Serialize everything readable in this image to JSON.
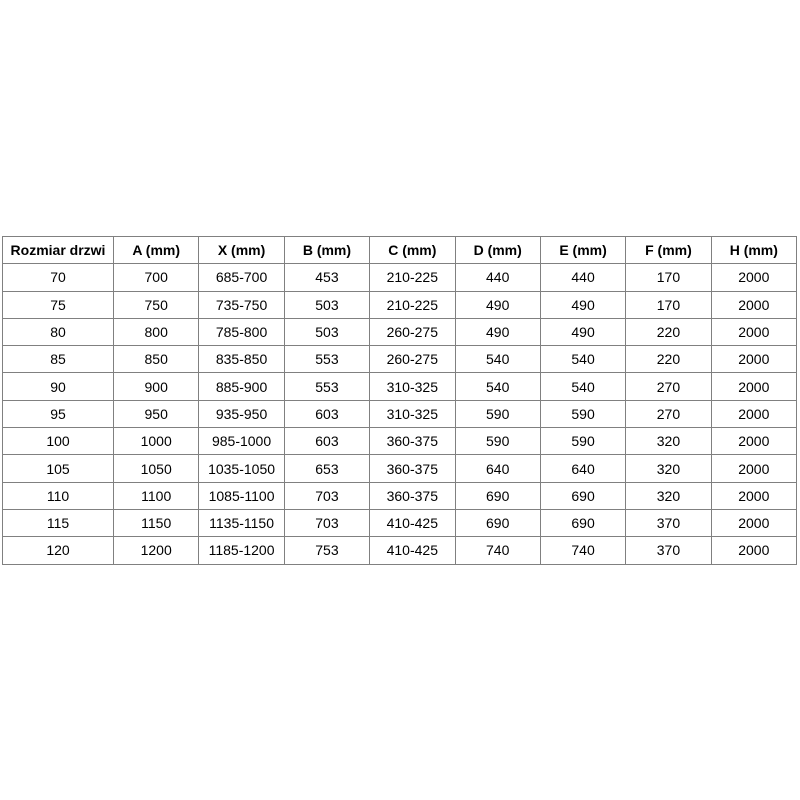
{
  "chart_data": {
    "type": "table",
    "title": "",
    "columns": [
      "Rozmiar drzwi",
      "A (mm)",
      "X (mm)",
      "B (mm)",
      "C (mm)",
      "D (mm)",
      "E (mm)",
      "F (mm)",
      "H (mm)"
    ],
    "rows": [
      [
        "70",
        "700",
        "685-700",
        "453",
        "210-225",
        "440",
        "440",
        "170",
        "2000"
      ],
      [
        "75",
        "750",
        "735-750",
        "503",
        "210-225",
        "490",
        "490",
        "170",
        "2000"
      ],
      [
        "80",
        "800",
        "785-800",
        "503",
        "260-275",
        "490",
        "490",
        "220",
        "2000"
      ],
      [
        "85",
        "850",
        "835-850",
        "553",
        "260-275",
        "540",
        "540",
        "220",
        "2000"
      ],
      [
        "90",
        "900",
        "885-900",
        "553",
        "310-325",
        "540",
        "540",
        "270",
        "2000"
      ],
      [
        "95",
        "950",
        "935-950",
        "603",
        "310-325",
        "590",
        "590",
        "270",
        "2000"
      ],
      [
        "100",
        "1000",
        "985-1000",
        "603",
        "360-375",
        "590",
        "590",
        "320",
        "2000"
      ],
      [
        "105",
        "1050",
        "1035-1050",
        "653",
        "360-375",
        "640",
        "640",
        "320",
        "2000"
      ],
      [
        "110",
        "1100",
        "1085-1100",
        "703",
        "360-375",
        "690",
        "690",
        "320",
        "2000"
      ],
      [
        "115",
        "1150",
        "1135-1150",
        "703",
        "410-425",
        "690",
        "690",
        "370",
        "2000"
      ],
      [
        "120",
        "1200",
        "1185-1200",
        "753",
        "410-425",
        "740",
        "740",
        "370",
        "2000"
      ]
    ]
  },
  "styles": {
    "border_color": "#808080",
    "text_color": "#000000",
    "background_color": "#ffffff"
  }
}
